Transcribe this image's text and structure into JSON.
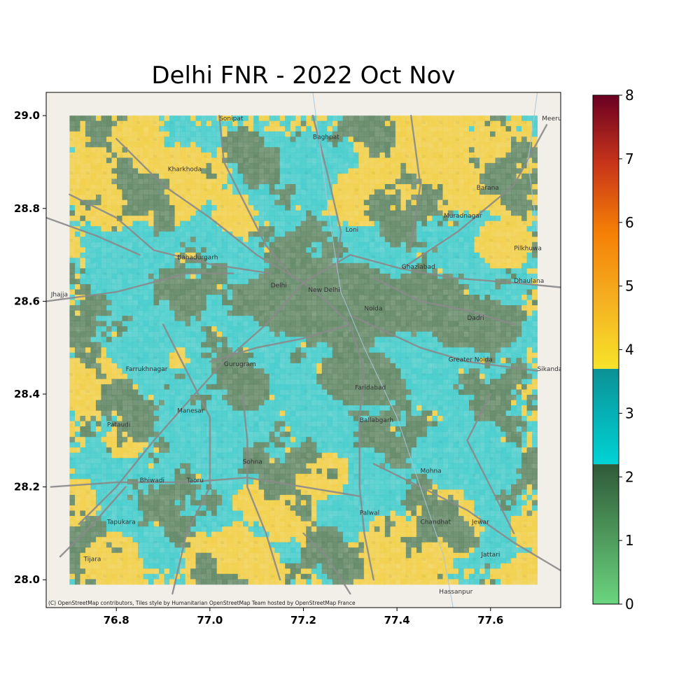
{
  "title": "Delhi FNR - 2022 Oct Nov",
  "attribution": "(C) OpenStreetMap contributors, Tiles style by Humanitarian OpenStreetMap Team hosted by OpenStreetMap France",
  "axes": {
    "xlim": [
      76.65,
      77.75
    ],
    "ylim": [
      27.94,
      29.05
    ],
    "xticks": [
      76.8,
      77.0,
      77.2,
      77.4,
      77.6
    ],
    "xtick_labels": [
      "76.8",
      "77.0",
      "77.2",
      "77.4",
      "77.6"
    ],
    "yticks": [
      28.0,
      28.2,
      28.4,
      28.6,
      28.8,
      29.0
    ],
    "ytick_labels": [
      "28.0",
      "28.2",
      "28.4",
      "28.6",
      "28.8",
      "29.0"
    ]
  },
  "raster_extent": {
    "lon": [
      76.7,
      77.7
    ],
    "lat": [
      27.99,
      29.0
    ]
  },
  "colorbar": {
    "min": 0,
    "max": 8,
    "ticks": [
      0,
      1,
      2,
      3,
      4,
      5,
      6,
      7,
      8
    ],
    "tick_labels": [
      "0",
      "1",
      "2",
      "3",
      "4",
      "5",
      "6",
      "7",
      "8"
    ],
    "segments": [
      {
        "from": 0,
        "to": 2.2,
        "colors": [
          "#6bd47e",
          "#2f5a38"
        ]
      },
      {
        "from": 2.2,
        "to": 3.7,
        "colors": [
          "#00d3d5",
          "#0b9196"
        ]
      },
      {
        "from": 3.7,
        "to": 8,
        "colors": [
          "#f7e32a",
          "#f5b020",
          "#f57f05",
          "#c8351a",
          "#6a0022"
        ]
      }
    ]
  },
  "fnr_colors": {
    "low": "#5f8664",
    "mid": "#42cccc",
    "high": "#f2cf44"
  },
  "places": [
    {
      "name": "Sonipat",
      "lon": 77.02,
      "lat": 28.99
    },
    {
      "name": "Meeru",
      "lon": 77.71,
      "lat": 28.99
    },
    {
      "name": "Kharkhoda",
      "lon": 76.91,
      "lat": 28.88
    },
    {
      "name": "Baghpat",
      "lon": 77.22,
      "lat": 28.95
    },
    {
      "name": "Barana",
      "lon": 77.57,
      "lat": 28.84
    },
    {
      "name": "Muradnagar",
      "lon": 77.5,
      "lat": 28.78
    },
    {
      "name": "Loni",
      "lon": 77.29,
      "lat": 28.75
    },
    {
      "name": "Bahadurgarh",
      "lon": 76.93,
      "lat": 28.69
    },
    {
      "name": "Ghaziabad",
      "lon": 77.41,
      "lat": 28.67
    },
    {
      "name": "Pilkhuwa",
      "lon": 77.65,
      "lat": 28.71
    },
    {
      "name": "Delhi",
      "lon": 77.13,
      "lat": 28.63
    },
    {
      "name": "New Delhi",
      "lon": 77.21,
      "lat": 28.62
    },
    {
      "name": "Dhaulana",
      "lon": 77.65,
      "lat": 28.64
    },
    {
      "name": "Jhajja",
      "lon": 76.66,
      "lat": 28.61
    },
    {
      "name": "Noida",
      "lon": 77.33,
      "lat": 28.58
    },
    {
      "name": "Dadri",
      "lon": 77.55,
      "lat": 28.56
    },
    {
      "name": "Farrukhnagar",
      "lon": 76.82,
      "lat": 28.45
    },
    {
      "name": "Gurugram",
      "lon": 77.03,
      "lat": 28.46
    },
    {
      "name": "Greater Noida",
      "lon": 77.51,
      "lat": 28.47
    },
    {
      "name": "Sikanda",
      "lon": 77.7,
      "lat": 28.45
    },
    {
      "name": "Faridabad",
      "lon": 77.31,
      "lat": 28.41
    },
    {
      "name": "Manesar",
      "lon": 76.93,
      "lat": 28.36
    },
    {
      "name": "Pataudi",
      "lon": 76.78,
      "lat": 28.33
    },
    {
      "name": "Ballabgarh",
      "lon": 77.32,
      "lat": 28.34
    },
    {
      "name": "Sohna",
      "lon": 77.07,
      "lat": 28.25
    },
    {
      "name": "Mohna",
      "lon": 77.45,
      "lat": 28.23
    },
    {
      "name": "Bhiwadi",
      "lon": 76.85,
      "lat": 28.21
    },
    {
      "name": "Taoru",
      "lon": 76.95,
      "lat": 28.21
    },
    {
      "name": "Tapukara",
      "lon": 76.78,
      "lat": 28.12
    },
    {
      "name": "Palwal",
      "lon": 77.32,
      "lat": 28.14
    },
    {
      "name": "Chandhat",
      "lon": 77.45,
      "lat": 28.12
    },
    {
      "name": "Jewar",
      "lon": 77.56,
      "lat": 28.12
    },
    {
      "name": "Tijara",
      "lon": 76.73,
      "lat": 28.04
    },
    {
      "name": "Jattari",
      "lon": 77.58,
      "lat": 28.05
    },
    {
      "name": "Hassanpur",
      "lon": 77.49,
      "lat": 27.97
    }
  ]
}
